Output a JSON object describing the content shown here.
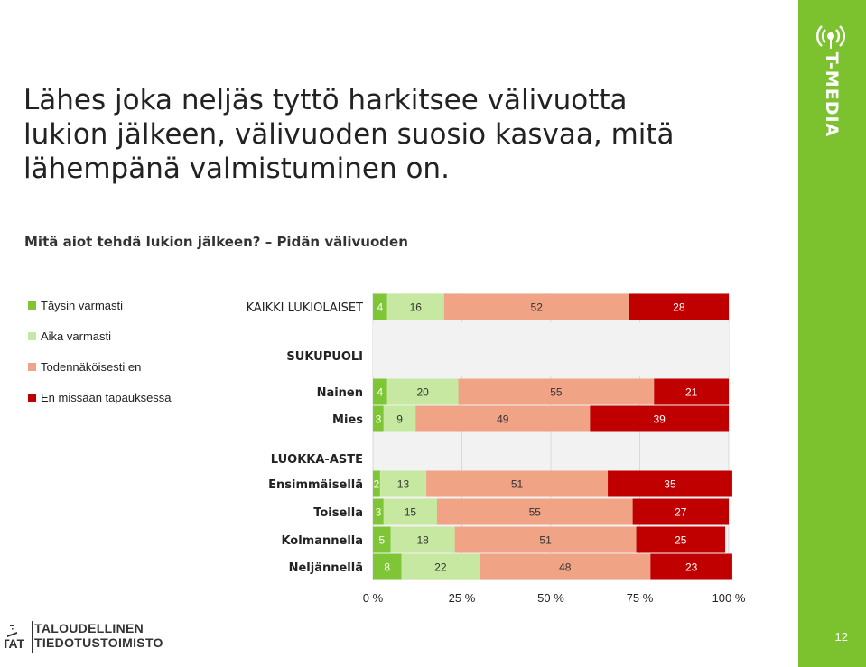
{
  "title_lines": [
    "Lähes joka neljäs tyttö harkitsee välivuotta",
    "lukion jälkeen, välivuoden suosio kasvaa, mitä",
    "lähempänä valmistuminen on."
  ],
  "subtitle": "Mitä aiot tehdä lukion jälkeen? – Pidän välivuoden",
  "brand": "T-MEDIA",
  "page_number": "12",
  "footer": {
    "abbr": "TAT",
    "line1": "TALOUDELLINEN",
    "line2": "TIEDOTUSTOIMISTO"
  },
  "colors": {
    "sidebar": "#7cc22e",
    "taysin": "#7ec635",
    "aika": "#c6e8a0",
    "todennakoisesti": "#f0a385",
    "ei": "#c00000"
  },
  "chart_data": {
    "type": "bar",
    "orientation": "horizontal-stacked-100",
    "legend_position": "left",
    "series": [
      {
        "name": "Täysin varmasti",
        "color": "#7ec635",
        "label_color": "#ffffff",
        "values": [
          4,
          4,
          3,
          2,
          3,
          5,
          8
        ]
      },
      {
        "name": "Aika varmasti",
        "color": "#c6e8a0",
        "label_color": "#333333",
        "values": [
          16,
          20,
          9,
          13,
          15,
          18,
          22
        ]
      },
      {
        "name": "Todennäköisesti en",
        "color": "#f0a385",
        "label_color": "#333333",
        "values": [
          52,
          55,
          49,
          51,
          55,
          51,
          48
        ]
      },
      {
        "name": "En missään tapauksessa",
        "color": "#c00000",
        "label_color": "#ffffff",
        "values": [
          28,
          21,
          39,
          35,
          27,
          25,
          23
        ]
      }
    ],
    "categories": [
      "KAIKKI LUKIOLAISET",
      "Nainen",
      "Mies",
      "Ensimmäisellä",
      "Toisella",
      "Kolmannella",
      "Neljännellä"
    ],
    "group_headers": [
      "SUKUPUOLI",
      "LUOKKA-ASTE"
    ],
    "x_ticks": [
      "0 %",
      "25 %",
      "50 %",
      "75 %",
      "100 %"
    ],
    "xlim": [
      0,
      100
    ]
  }
}
